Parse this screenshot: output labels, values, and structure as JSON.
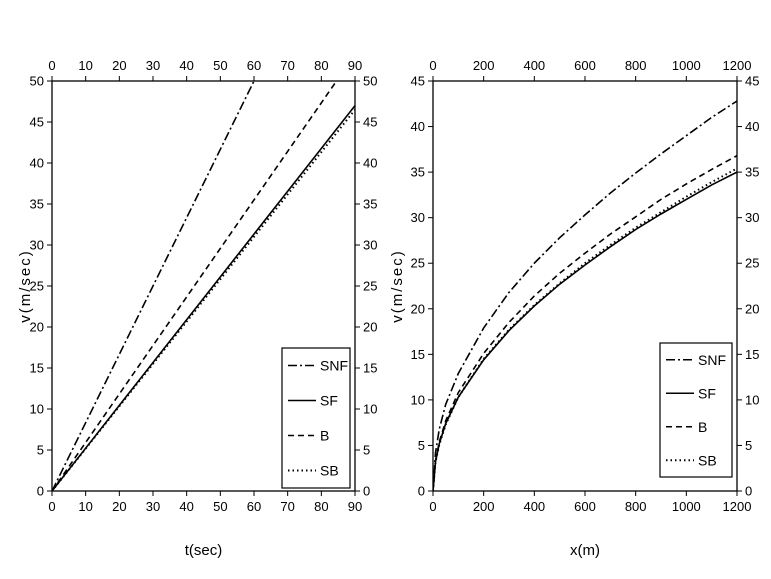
{
  "chart_data": [
    {
      "type": "line",
      "xlabel": "t(sec)",
      "ylabel": "v(m/sec)",
      "xlim": [
        0,
        90
      ],
      "ylim": [
        0,
        50
      ],
      "xticks": [
        "0",
        "10",
        "20",
        "30",
        "40",
        "50",
        "60",
        "70",
        "80",
        "90"
      ],
      "yticks": [
        "0",
        "5",
        "10",
        "15",
        "20",
        "25",
        "30",
        "35",
        "40",
        "45",
        "50"
      ],
      "mirrored_axes": true,
      "legend_position": "bottom-right",
      "series": [
        {
          "name": "SNF",
          "style": "dashdot",
          "x": [
            0,
            60
          ],
          "y": [
            0,
            50
          ]
        },
        {
          "name": "SF",
          "style": "solid",
          "x": [
            0,
            90
          ],
          "y": [
            0,
            47
          ]
        },
        {
          "name": "B",
          "style": "dashed",
          "x": [
            0,
            84.5
          ],
          "y": [
            0,
            50
          ]
        },
        {
          "name": "SB",
          "style": "dotted",
          "x": [
            0,
            90
          ],
          "y": [
            0,
            46.5
          ]
        }
      ]
    },
    {
      "type": "line",
      "xlabel": "x(m)",
      "ylabel": "v(m/sec)",
      "xlim": [
        0,
        1200
      ],
      "ylim": [
        0,
        45
      ],
      "xticks": [
        "0",
        "200",
        "400",
        "600",
        "800",
        "1000",
        "1200"
      ],
      "yticks": [
        "0",
        "5",
        "10",
        "15",
        "20",
        "25",
        "30",
        "35",
        "40",
        "45"
      ],
      "mirrored_axes": true,
      "legend_position": "bottom-right",
      "series": [
        {
          "name": "SNF",
          "style": "dashdot",
          "x": [
            0,
            10,
            25,
            50,
            100,
            200,
            300,
            400,
            500,
            600,
            700,
            800,
            900,
            1000,
            1100,
            1200
          ],
          "y": [
            0,
            4.2,
            6.8,
            9.5,
            12.9,
            17.9,
            21.8,
            25.0,
            27.8,
            30.3,
            32.7,
            34.9,
            37.0,
            39.0,
            41.0,
            42.8
          ]
        },
        {
          "name": "SF",
          "style": "solid",
          "x": [
            0,
            10,
            25,
            50,
            100,
            200,
            300,
            400,
            500,
            600,
            700,
            800,
            900,
            1000,
            1100,
            1200
          ],
          "y": [
            0,
            3.2,
            5.2,
            7.4,
            10.3,
            14.4,
            17.6,
            20.3,
            22.7,
            24.8,
            26.8,
            28.7,
            30.4,
            32.0,
            33.6,
            35.0
          ]
        },
        {
          "name": "B",
          "style": "dashed",
          "x": [
            0,
            10,
            25,
            50,
            100,
            200,
            300,
            400,
            500,
            600,
            700,
            800,
            900,
            1000,
            1100,
            1200
          ],
          "y": [
            0,
            3.3,
            5.4,
            7.7,
            10.8,
            15.1,
            18.5,
            21.4,
            23.9,
            26.1,
            28.2,
            30.1,
            32.0,
            33.7,
            35.3,
            36.8
          ]
        },
        {
          "name": "SB",
          "style": "dotted",
          "x": [
            0,
            10,
            25,
            50,
            100,
            200,
            300,
            400,
            500,
            600,
            700,
            800,
            900,
            1000,
            1100,
            1200
          ],
          "y": [
            0,
            3.2,
            5.1,
            7.3,
            10.3,
            14.5,
            17.7,
            20.4,
            22.8,
            25.0,
            27.0,
            28.9,
            30.6,
            32.3,
            33.9,
            35.4
          ]
        }
      ]
    }
  ]
}
